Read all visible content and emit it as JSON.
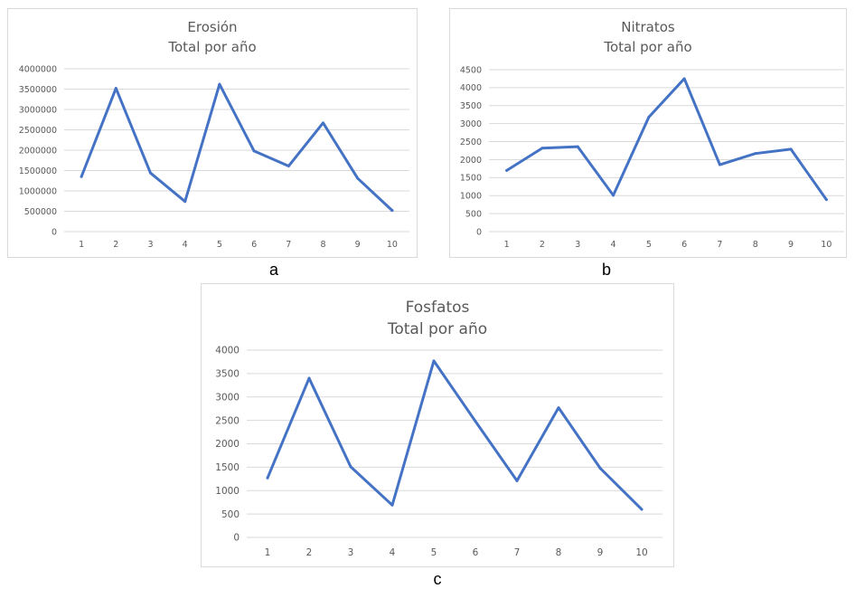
{
  "colors": {
    "line": "#4472c4",
    "grid": "#d9d9d9",
    "text": "#595959",
    "border": "#d9d9d9"
  },
  "captions": [
    "a",
    "b",
    "c"
  ],
  "chart_data": [
    {
      "type": "line",
      "title": "Erosión",
      "subtitle": "Total por año",
      "categories": [
        "1",
        "2",
        "3",
        "4",
        "5",
        "6",
        "7",
        "8",
        "9",
        "10"
      ],
      "values": [
        1350000,
        3520000,
        1440000,
        740000,
        3620000,
        1980000,
        1610000,
        2670000,
        1310000,
        520000
      ],
      "yticks": [
        "0",
        "500000",
        "1000000",
        "1500000",
        "2000000",
        "2500000",
        "3000000",
        "3500000",
        "4000000"
      ],
      "ylim": [
        0,
        4000000
      ],
      "grid": true,
      "legend": "none"
    },
    {
      "type": "line",
      "title": "Nitratos",
      "subtitle": "Total por año",
      "categories": [
        "1",
        "2",
        "3",
        "4",
        "5",
        "6",
        "7",
        "8",
        "9",
        "10"
      ],
      "values": [
        1700,
        2320,
        2360,
        1010,
        3180,
        4250,
        1860,
        2170,
        2290,
        890
      ],
      "yticks": [
        "0",
        "500",
        "1000",
        "1500",
        "2000",
        "2500",
        "3000",
        "3500",
        "4000",
        "4500"
      ],
      "ylim": [
        0,
        4500
      ],
      "grid": true,
      "legend": "none"
    },
    {
      "type": "line",
      "title": "Fosfatos",
      "subtitle": "Total por año",
      "categories": [
        "1",
        "2",
        "3",
        "4",
        "5",
        "6",
        "7",
        "8",
        "9",
        "10"
      ],
      "values": [
        1270,
        3400,
        1510,
        690,
        3770,
        2480,
        1210,
        2770,
        1480,
        600
      ],
      "yticks": [
        "0",
        "500",
        "1000",
        "1500",
        "2000",
        "2500",
        "3000",
        "3500",
        "4000"
      ],
      "ylim": [
        0,
        4000
      ],
      "grid": true,
      "legend": "none"
    }
  ]
}
